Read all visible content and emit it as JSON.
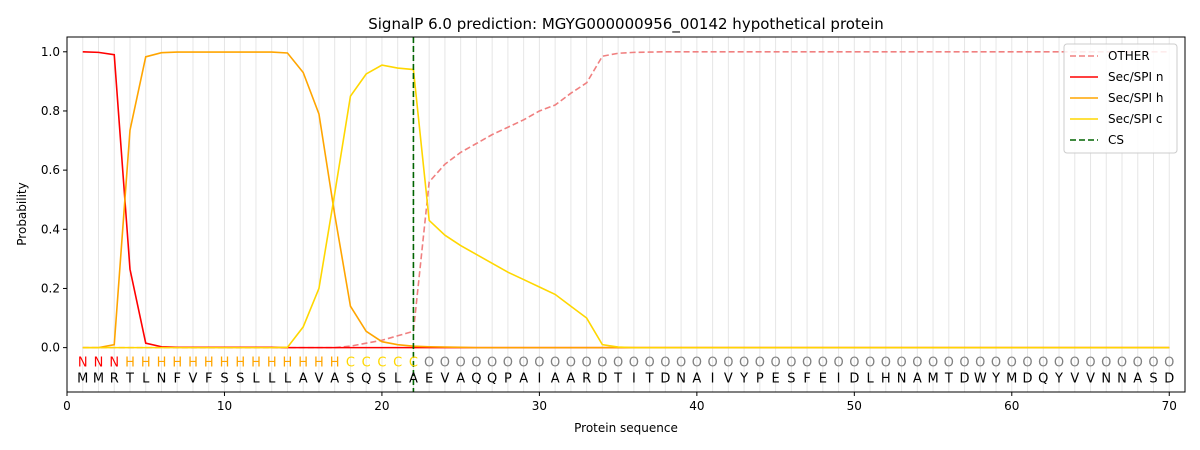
{
  "chart_data": {
    "type": "line",
    "title": "SignalP 6.0 prediction: MGYG000000956_00142 hypothetical protein",
    "xlabel": "Protein sequence",
    "ylabel": "Probability",
    "xlim": [
      0,
      71
    ],
    "ylim": [
      -0.15,
      1.05
    ],
    "xticks": [
      0,
      10,
      20,
      30,
      40,
      50,
      60,
      70
    ],
    "yticks": [
      0.0,
      0.2,
      0.4,
      0.6,
      0.8,
      1.0
    ],
    "ytick_labels": [
      "0.0",
      "0.2",
      "0.4",
      "0.6",
      "0.8",
      "1.0"
    ],
    "grid": "vertical lines at each residue",
    "legend_position": "top-right",
    "sequence": [
      "M",
      "M",
      "R",
      "T",
      "L",
      "N",
      "F",
      "V",
      "F",
      "S",
      "S",
      "L",
      "L",
      "L",
      "A",
      "V",
      "A",
      "S",
      "Q",
      "S",
      "L",
      "A",
      "E",
      "V",
      "A",
      "Q",
      "Q",
      "P",
      "A",
      "I",
      "A",
      "A",
      "R",
      "D",
      "T",
      "I",
      "T",
      "D",
      "N",
      "A",
      "I",
      "V",
      "Y",
      "P",
      "E",
      "S",
      "F",
      "E",
      "I",
      "D",
      "L",
      "H",
      "N",
      "A",
      "M",
      "T",
      "D",
      "W",
      "Y",
      "M",
      "D",
      "Q",
      "Y",
      "V",
      "V",
      "N",
      "N",
      "A",
      "S",
      "D"
    ],
    "labels": [
      "N",
      "N",
      "N",
      "H",
      "H",
      "H",
      "H",
      "H",
      "H",
      "H",
      "H",
      "H",
      "H",
      "H",
      "H",
      "H",
      "H",
      "C",
      "C",
      "C",
      "C",
      "C",
      "O",
      "O",
      "O",
      "O",
      "O",
      "O",
      "O",
      "O",
      "O",
      "O",
      "O",
      "O",
      "O",
      "O",
      "O",
      "O",
      "O",
      "O",
      "O",
      "O",
      "O",
      "O",
      "O",
      "O",
      "O",
      "O",
      "O",
      "O",
      "O",
      "O",
      "O",
      "O",
      "O",
      "O",
      "O",
      "O",
      "O",
      "O",
      "O",
      "O",
      "O",
      "O",
      "O",
      "O",
      "O",
      "O",
      "O",
      "O"
    ],
    "label_colors": {
      "N": "#ff0000",
      "H": "#ffa500",
      "C": "#ffd700",
      "O": "#808080"
    },
    "series": [
      {
        "name": "OTHER",
        "color": "#f08080",
        "style": "dashed",
        "values": [
          0.0,
          0.0,
          0.0,
          0.0,
          0.0,
          0.0,
          0.0,
          0.0,
          0.0,
          0.0,
          0.0,
          0.0,
          0.0,
          0.0,
          0.0,
          0.0,
          0.0,
          0.005,
          0.015,
          0.025,
          0.04,
          0.055,
          0.56,
          0.62,
          0.66,
          0.69,
          0.72,
          0.745,
          0.77,
          0.8,
          0.82,
          0.86,
          0.895,
          0.985,
          0.995,
          0.998,
          0.999,
          1.0,
          1.0,
          1.0,
          1.0,
          1.0,
          1.0,
          1.0,
          1.0,
          1.0,
          1.0,
          1.0,
          1.0,
          1.0,
          1.0,
          1.0,
          1.0,
          1.0,
          1.0,
          1.0,
          1.0,
          1.0,
          1.0,
          1.0,
          1.0,
          1.0,
          1.0,
          1.0,
          1.0,
          1.0,
          1.0,
          1.0,
          1.0,
          1.0
        ]
      },
      {
        "name": "Sec/SPI n",
        "color": "#ff0000",
        "style": "solid",
        "values": [
          1.0,
          0.998,
          0.99,
          0.265,
          0.015,
          0.003,
          0.001,
          0.001,
          0.001,
          0.001,
          0.001,
          0.001,
          0.001,
          0.0,
          0.0,
          0.0,
          0.0,
          0.0,
          0.0,
          0.0,
          0.0,
          0.0,
          0.0,
          0.0,
          0.0,
          0.0,
          0.0,
          0.0,
          0.0,
          0.0,
          0.0,
          0.0,
          0.0,
          0.0,
          0.0,
          0.0,
          0.0,
          0.0,
          0.0,
          0.0,
          0.0,
          0.0,
          0.0,
          0.0,
          0.0,
          0.0,
          0.0,
          0.0,
          0.0,
          0.0,
          0.0,
          0.0,
          0.0,
          0.0,
          0.0,
          0.0,
          0.0,
          0.0,
          0.0,
          0.0,
          0.0,
          0.0,
          0.0,
          0.0,
          0.0,
          0.0,
          0.0,
          0.0,
          0.0,
          0.0
        ]
      },
      {
        "name": "Sec/SPI h",
        "color": "#ffa500",
        "style": "solid",
        "values": [
          0.0,
          0.0,
          0.01,
          0.735,
          0.983,
          0.997,
          0.999,
          0.999,
          0.999,
          0.999,
          0.999,
          0.999,
          0.999,
          0.996,
          0.93,
          0.79,
          0.45,
          0.14,
          0.055,
          0.02,
          0.01,
          0.005,
          0.003,
          0.002,
          0.001,
          0.0,
          0.0,
          0.0,
          0.0,
          0.0,
          0.0,
          0.0,
          0.0,
          0.0,
          0.0,
          0.0,
          0.0,
          0.0,
          0.0,
          0.0,
          0.0,
          0.0,
          0.0,
          0.0,
          0.0,
          0.0,
          0.0,
          0.0,
          0.0,
          0.0,
          0.0,
          0.0,
          0.0,
          0.0,
          0.0,
          0.0,
          0.0,
          0.0,
          0.0,
          0.0,
          0.0,
          0.0,
          0.0,
          0.0,
          0.0,
          0.0,
          0.0,
          0.0,
          0.0,
          0.0
        ]
      },
      {
        "name": "Sec/SPI c",
        "color": "#ffd700",
        "style": "solid",
        "values": [
          0.0,
          0.0,
          0.0,
          0.0,
          0.0,
          0.0,
          0.0,
          0.0,
          0.0,
          0.0,
          0.0,
          0.0,
          0.0,
          0.001,
          0.07,
          0.2,
          0.52,
          0.85,
          0.925,
          0.955,
          0.945,
          0.94,
          0.43,
          0.38,
          0.345,
          0.315,
          0.285,
          0.255,
          0.23,
          0.205,
          0.18,
          0.14,
          0.1,
          0.01,
          0.002,
          0.0,
          0.0,
          0.0,
          0.0,
          0.0,
          0.0,
          0.0,
          0.0,
          0.0,
          0.0,
          0.0,
          0.0,
          0.0,
          0.0,
          0.0,
          0.0,
          0.0,
          0.0,
          0.0,
          0.0,
          0.0,
          0.0,
          0.0,
          0.0,
          0.0,
          0.0,
          0.0,
          0.0,
          0.0,
          0.0,
          0.0,
          0.0,
          0.0,
          0.0,
          0.0
        ]
      }
    ],
    "cleavage_site": {
      "name": "CS",
      "x": 22,
      "color": "#006400",
      "style": "dashed"
    }
  }
}
